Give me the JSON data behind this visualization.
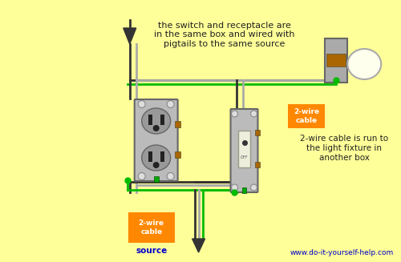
{
  "bg_color": "#FFFF99",
  "title_text": "the switch and receptacle are\nin the same box and wired with\npigtails to the same source",
  "label_cable_run": "2-wire cable is run to\nthe light fixture in\nanother box",
  "label_2wire": "2-wire\ncable",
  "label_source_line1": "2-wire\ncable",
  "label_source_line2": "source",
  "website": "www.do-it-yourself-help.com",
  "wire_black": "#333333",
  "wire_white": "#AAAAAA",
  "wire_green": "#00BB00",
  "orange_bg": "#FF8800",
  "blue_text": "#0000CC",
  "outlet_gray": "#AAAAAA",
  "outlet_dark": "#888888",
  "switch_gray": "#AAAAAA",
  "screw_brown": "#AA6600",
  "screw_gray": "#888888",
  "light_gray": "#AAAAAA",
  "bulb_color": "#FFFFEE"
}
